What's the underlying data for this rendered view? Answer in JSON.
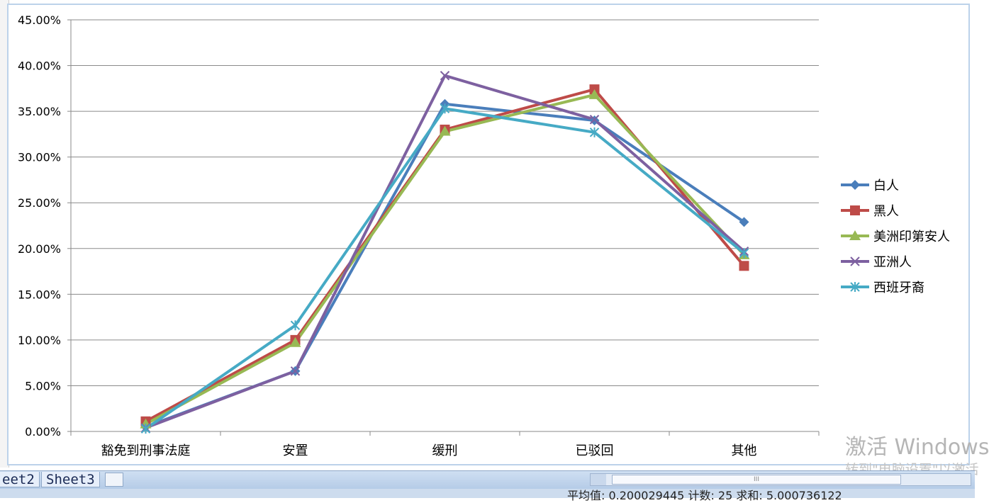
{
  "chart_data": {
    "type": "line",
    "categories": [
      "豁免到刑事法庭",
      "安置",
      "缓刑",
      "已驳回",
      "其他"
    ],
    "ylim": [
      0,
      0.45
    ],
    "yticks": [
      "0.00%",
      "5.00%",
      "10.00%",
      "15.00%",
      "20.00%",
      "25.00%",
      "30.00%",
      "35.00%",
      "40.00%",
      "45.00%"
    ],
    "grid": true,
    "legend_position": "right",
    "series": [
      {
        "name": "白人",
        "color": "#4a7ebb",
        "marker": "diamond",
        "values": [
          0.005,
          0.066,
          0.358,
          0.34,
          0.229
        ]
      },
      {
        "name": "黑人",
        "color": "#be4b48",
        "marker": "square",
        "values": [
          0.011,
          0.1,
          0.33,
          0.374,
          0.181
        ]
      },
      {
        "name": "美洲印第安人",
        "color": "#98b954",
        "marker": "triangle",
        "values": [
          0.008,
          0.097,
          0.328,
          0.368,
          0.193
        ]
      },
      {
        "name": "亚洲人",
        "color": "#7d60a0",
        "marker": "x",
        "values": [
          0.004,
          0.066,
          0.389,
          0.341,
          0.197
        ]
      },
      {
        "name": "西班牙裔",
        "color": "#46aac5",
        "marker": "asterisk",
        "values": [
          0.003,
          0.116,
          0.353,
          0.327,
          0.195
        ]
      }
    ]
  },
  "sheet_tabs": [
    "eet2",
    "Sheet3"
  ],
  "status": {
    "text": "平均值: 0.200029445 计数: 25 求和: 5.000736122"
  },
  "scroll_grip": "III",
  "watermark": {
    "line1": "激活 Windows",
    "line2": "转到\"电脑设置\"以激活"
  }
}
